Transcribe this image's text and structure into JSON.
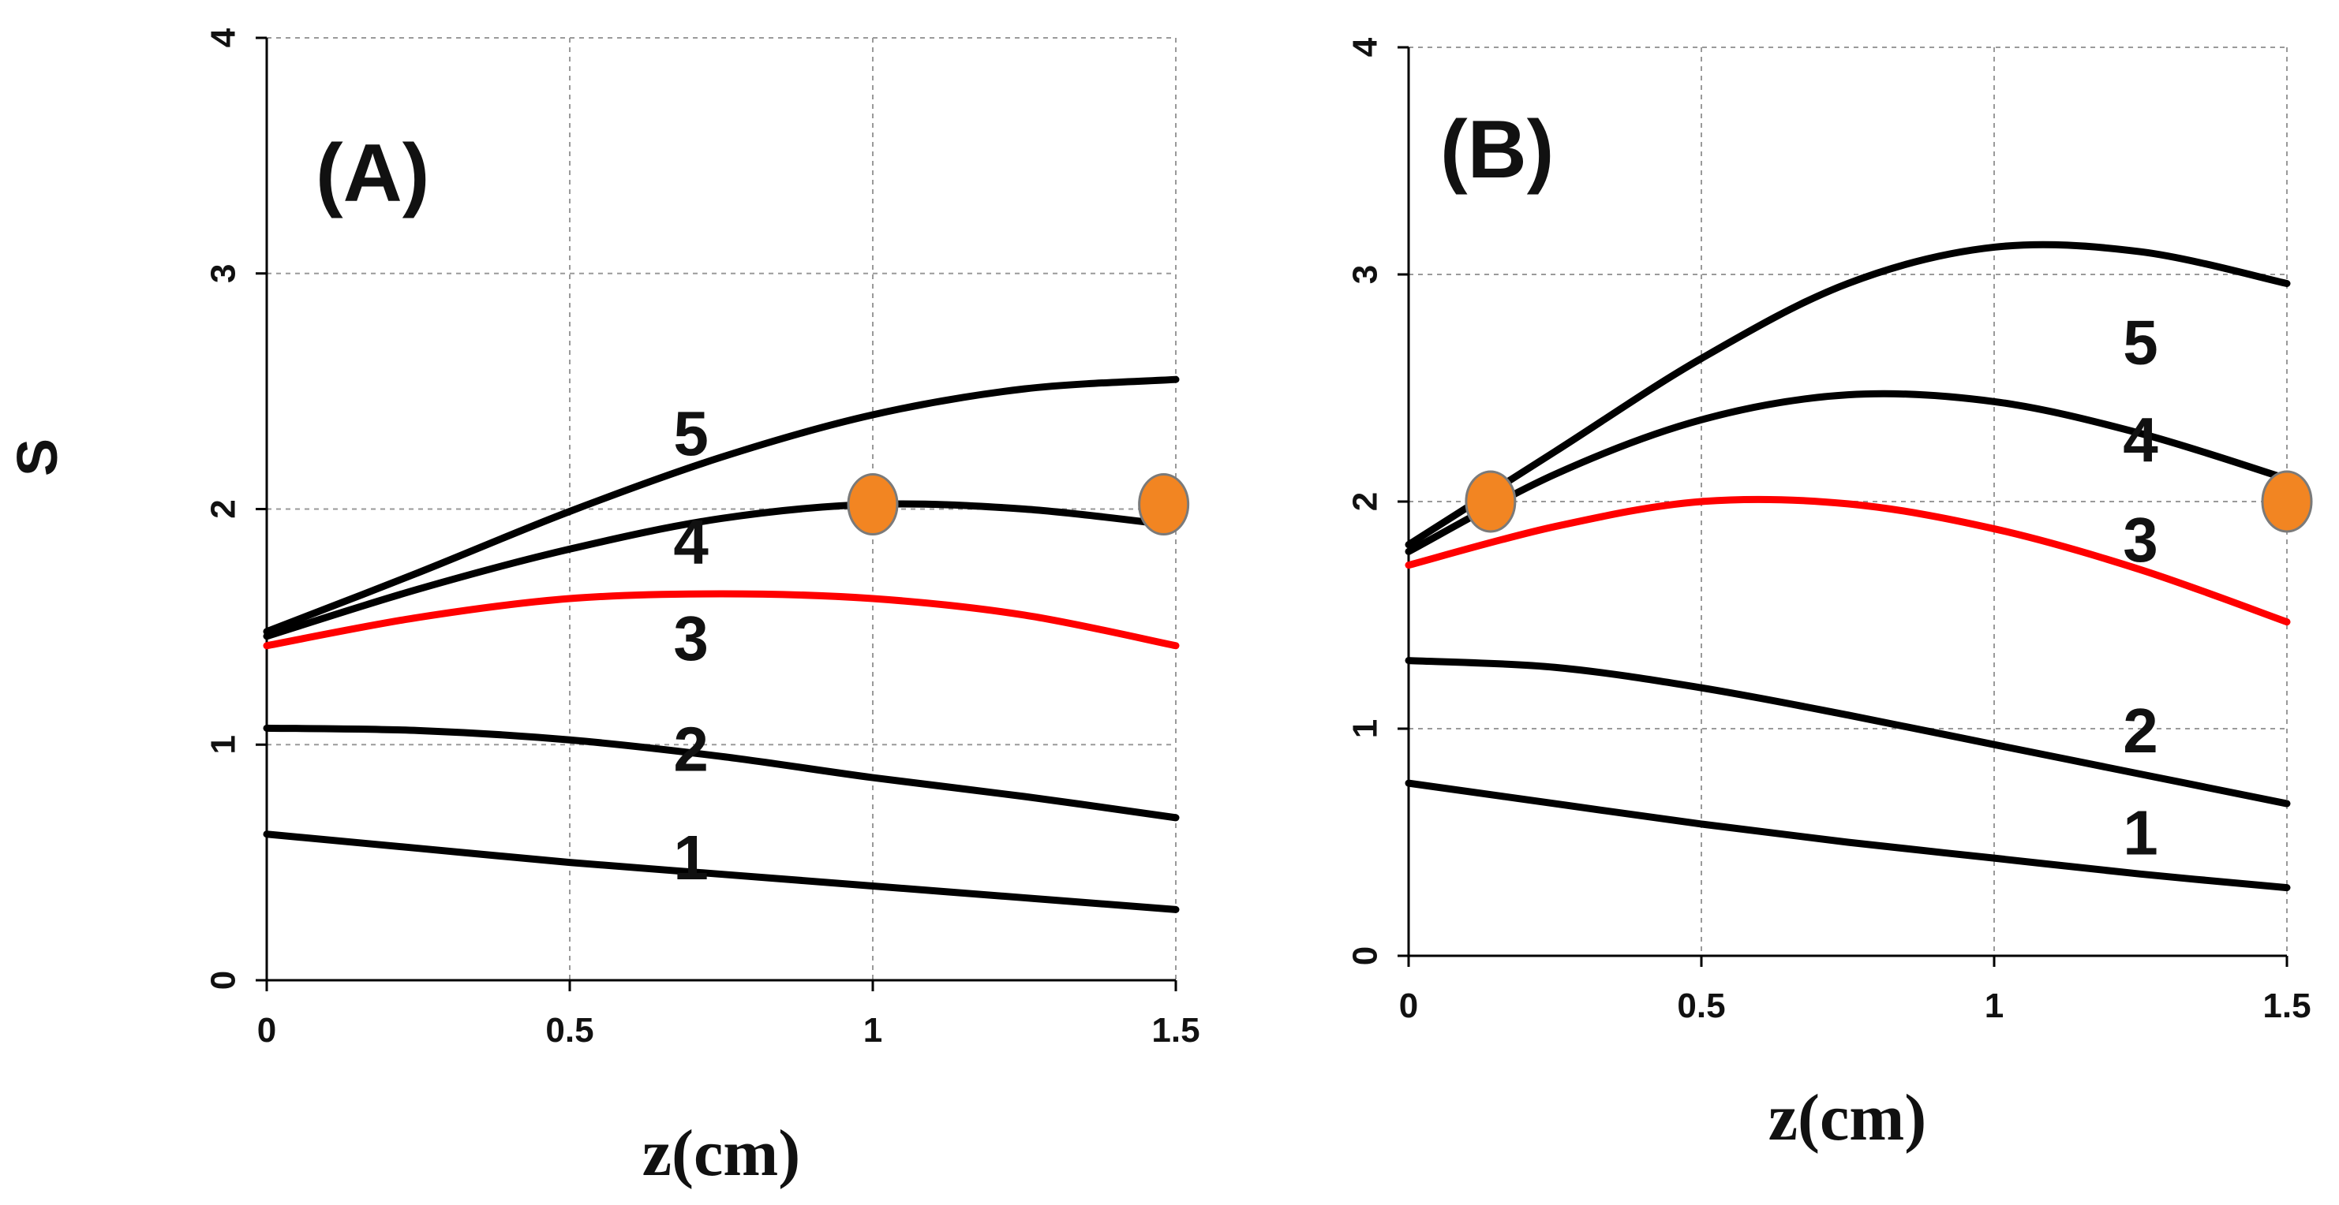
{
  "chart_data": [
    {
      "type": "line",
      "panel_label": "(A)",
      "xlabel": "z(cm)",
      "ylabel": "S",
      "xlim": [
        0,
        1.5
      ],
      "ylim": [
        0,
        4
      ],
      "x_ticks": [
        0,
        0.5,
        1,
        1.5
      ],
      "x_tick_labels": [
        "0",
        "0.5",
        "1",
        "1.5"
      ],
      "y_ticks": [
        0,
        1,
        2,
        3,
        4
      ],
      "y_tick_labels": [
        "0",
        "1",
        "2",
        "3",
        "4"
      ],
      "grid": true,
      "series": [
        {
          "name": "1",
          "color": "#000000",
          "x": [
            0,
            0.25,
            0.5,
            0.75,
            1.0,
            1.25,
            1.5
          ],
          "values": [
            0.62,
            0.56,
            0.5,
            0.45,
            0.4,
            0.35,
            0.3
          ],
          "label_at": [
            0.7,
            0.5
          ]
        },
        {
          "name": "2",
          "color": "#000000",
          "x": [
            0,
            0.25,
            0.5,
            0.75,
            1.0,
            1.25,
            1.5
          ],
          "values": [
            1.07,
            1.06,
            1.02,
            0.95,
            0.86,
            0.78,
            0.69
          ],
          "label_at": [
            0.7,
            0.96
          ]
        },
        {
          "name": "3",
          "color": "#ff0000",
          "x": [
            0,
            0.25,
            0.5,
            0.75,
            1.0,
            1.25,
            1.5
          ],
          "values": [
            1.42,
            1.54,
            1.62,
            1.64,
            1.62,
            1.55,
            1.42
          ],
          "label_at": [
            0.7,
            1.43
          ]
        },
        {
          "name": "4",
          "color": "#000000",
          "x": [
            0,
            0.25,
            0.5,
            0.75,
            1.0,
            1.25,
            1.5
          ],
          "values": [
            1.46,
            1.66,
            1.83,
            1.96,
            2.02,
            2.0,
            1.93
          ],
          "label_at": [
            0.7,
            1.84
          ]
        },
        {
          "name": "5",
          "color": "#000000",
          "x": [
            0,
            0.25,
            0.5,
            0.75,
            1.0,
            1.25,
            1.5
          ],
          "values": [
            1.48,
            1.73,
            1.99,
            2.22,
            2.4,
            2.51,
            2.55
          ],
          "label_at": [
            0.7,
            2.3
          ]
        }
      ],
      "markers": [
        {
          "x": 1.0,
          "y": 2.02,
          "color": "#f28522"
        },
        {
          "x": 1.48,
          "y": 2.02,
          "color": "#f28522"
        }
      ]
    },
    {
      "type": "line",
      "panel_label": "(B)",
      "xlabel": "z(cm)",
      "xlim": [
        0,
        1.5
      ],
      "ylim": [
        0,
        4
      ],
      "x_ticks": [
        0,
        0.5,
        1,
        1.5
      ],
      "x_tick_labels": [
        "0",
        "0.5",
        "1",
        "1.5"
      ],
      "y_ticks": [
        0,
        1,
        2,
        3,
        4
      ],
      "y_tick_labels": [
        "0",
        "1",
        "2",
        "3",
        "4"
      ],
      "grid": true,
      "series": [
        {
          "name": "1",
          "color": "#000000",
          "x": [
            0,
            0.25,
            0.5,
            0.75,
            1.0,
            1.25,
            1.5
          ],
          "values": [
            0.76,
            0.67,
            0.58,
            0.5,
            0.43,
            0.36,
            0.3
          ],
          "label_at": [
            1.25,
            0.52
          ]
        },
        {
          "name": "2",
          "color": "#000000",
          "x": [
            0,
            0.25,
            0.5,
            0.75,
            1.0,
            1.25,
            1.5
          ],
          "values": [
            1.3,
            1.27,
            1.18,
            1.06,
            0.93,
            0.8,
            0.67
          ],
          "label_at": [
            1.25,
            0.97
          ]
        },
        {
          "name": "3",
          "color": "#ff0000",
          "x": [
            0,
            0.25,
            0.5,
            0.75,
            1.0,
            1.25,
            1.5
          ],
          "values": [
            1.72,
            1.89,
            2.0,
            1.99,
            1.88,
            1.7,
            1.47
          ],
          "label_at": [
            1.25,
            1.81
          ]
        },
        {
          "name": "4",
          "color": "#000000",
          "x": [
            0,
            0.25,
            0.5,
            0.75,
            1.0,
            1.25,
            1.5
          ],
          "values": [
            1.78,
            2.12,
            2.36,
            2.47,
            2.44,
            2.3,
            2.1
          ],
          "label_at": [
            1.25,
            2.25
          ]
        },
        {
          "name": "5",
          "color": "#000000",
          "x": [
            0,
            0.25,
            0.5,
            0.75,
            1.0,
            1.25,
            1.5
          ],
          "values": [
            1.81,
            2.22,
            2.63,
            2.96,
            3.12,
            3.1,
            2.96
          ],
          "label_at": [
            1.25,
            2.68
          ]
        }
      ],
      "markers": [
        {
          "x": 0.14,
          "y": 2.0,
          "color": "#f28522"
        },
        {
          "x": 1.5,
          "y": 2.0,
          "color": "#f28522"
        }
      ]
    }
  ]
}
